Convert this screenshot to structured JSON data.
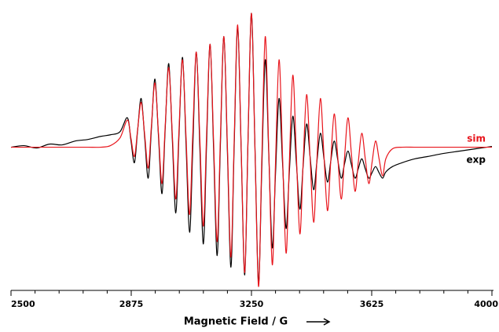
{
  "chart_data": {
    "type": "line",
    "xlabel": "Magnetic Field / G",
    "x": [
      2500,
      2540,
      2580,
      2620,
      2660,
      2700,
      2740,
      2780,
      2810,
      2840,
      2863,
      2874,
      2885,
      2895,
      2906,
      2917,
      2928,
      2938,
      2949,
      2960,
      2971,
      2981,
      2992,
      3003,
      3014,
      3024,
      3035,
      3046,
      3057,
      3067,
      3078,
      3089,
      3100,
      3110,
      3121,
      3132,
      3143,
      3153,
      3164,
      3175,
      3186,
      3196,
      3207,
      3218,
      3229,
      3239,
      3250,
      3261,
      3272,
      3282,
      3293,
      3304,
      3315,
      3325,
      3336,
      3347,
      3358,
      3368,
      3379,
      3390,
      3401,
      3411,
      3422,
      3433,
      3444,
      3454,
      3465,
      3476,
      3487,
      3497,
      3508,
      3519,
      3530,
      3540,
      3551,
      3562,
      3573,
      3583,
      3594,
      3605,
      3616,
      3626,
      3637,
      3648,
      3659,
      3669,
      3690,
      3720,
      3760,
      3800,
      3850,
      3900,
      3950,
      4000
    ],
    "series": [
      {
        "name": "exp",
        "color": "#000000",
        "values": [
          0,
          2,
          -1,
          4,
          3,
          8,
          10,
          14,
          16,
          20,
          38,
          9,
          -20,
          22,
          63,
          12,
          -40,
          24,
          88,
          14,
          -60,
          24,
          108,
          12,
          -85,
          16,
          116,
          3,
          -110,
          0,
          123,
          -1,
          -125,
          4,
          133,
          -4,
          -140,
          2,
          143,
          -6,
          -155,
          0,
          155,
          -5,
          -165,
          4,
          173,
          -1,
          -175,
          -31,
          113,
          -9,
          -130,
          -34,
          63,
          -21,
          -105,
          -33,
          40,
          -20,
          -80,
          -25,
          30,
          -13,
          -55,
          -19,
          18,
          -14,
          -45,
          -19,
          8,
          -16,
          -40,
          -22,
          -5,
          -23,
          -40,
          -28,
          -15,
          -28,
          -40,
          -33,
          -25,
          -33,
          -40,
          -32,
          -25,
          -20,
          -15,
          -12,
          -8,
          -5,
          -2,
          1
        ]
      },
      {
        "name": "sim",
        "color": "#e8141b",
        "values": [
          0,
          0,
          0,
          0,
          0,
          0,
          0,
          0,
          2,
          12,
          35,
          12,
          -12,
          23,
          58,
          16,
          -27,
          28,
          83,
          18,
          -47,
          28,
          103,
          18,
          -67,
          23,
          113,
          13,
          -87,
          18,
          123,
          11,
          -102,
          16,
          133,
          6,
          -122,
          11,
          143,
          1,
          -142,
          8,
          158,
          -2,
          -162,
          6,
          173,
          -4,
          -180,
          -19,
          143,
          -5,
          -152,
          -20,
          113,
          -12,
          -137,
          -22,
          93,
          -10,
          -112,
          -22,
          68,
          -15,
          -97,
          -17,
          63,
          -10,
          -82,
          -20,
          43,
          -12,
          -67,
          -15,
          38,
          -10,
          -57,
          -20,
          18,
          -15,
          -47,
          -20,
          8,
          -15,
          -37,
          -15,
          -2,
          0,
          0,
          0,
          0,
          0,
          0,
          0
        ]
      }
    ],
    "xlim": [
      2500,
      4000
    ],
    "ylim": [
      -185,
      178
    ],
    "xticks": [
      2500,
      2875,
      3250,
      3625,
      4000
    ],
    "xminorticks": [
      2575,
      2650,
      2725,
      2800,
      2950,
      3025,
      3100,
      3175,
      3325,
      3400,
      3475,
      3550,
      3700,
      3775,
      3850,
      3925
    ]
  }
}
